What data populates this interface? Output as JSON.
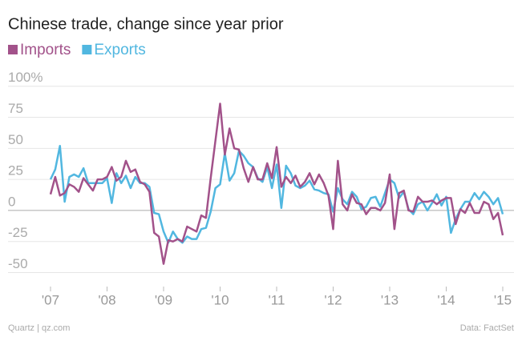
{
  "chart_data": {
    "type": "line",
    "title": "Chinese trade, change since year prior",
    "source_left": "Quartz | qz.com",
    "source_right": "Data: FactSet",
    "categories": [
      "'07",
      null,
      null,
      null,
      null,
      null,
      null,
      null,
      null,
      null,
      null,
      null,
      "'08",
      null,
      null,
      null,
      null,
      null,
      null,
      null,
      null,
      null,
      null,
      null,
      "'09",
      null,
      null,
      null,
      null,
      null,
      null,
      null,
      null,
      null,
      null,
      null,
      "'10",
      null,
      null,
      null,
      null,
      null,
      null,
      null,
      null,
      null,
      null,
      null,
      "'11",
      null,
      null,
      null,
      null,
      null,
      null,
      null,
      null,
      null,
      null,
      null,
      "'12",
      null,
      null,
      null,
      null,
      null,
      null,
      null,
      null,
      null,
      null,
      null,
      "'13",
      null,
      null,
      null,
      null,
      null,
      null,
      null,
      null,
      null,
      null,
      null,
      "'14",
      null,
      null,
      null,
      null,
      null,
      null,
      null,
      null,
      null,
      null,
      null,
      "'15"
    ],
    "series": [
      {
        "name": "Imports",
        "color": "#a2528a",
        "values": [
          13,
          27,
          12,
          14,
          21,
          19,
          15,
          26,
          21,
          16,
          25,
          25,
          27,
          35,
          24,
          27,
          40,
          31,
          33,
          23,
          21,
          15,
          -18,
          -21,
          -43,
          -24,
          -25,
          -23,
          -25,
          -13,
          -15,
          -17,
          -4,
          -6,
          26,
          56,
          86,
          45,
          66,
          50,
          49,
          34,
          23,
          35,
          25,
          25,
          38,
          26,
          51,
          19,
          27,
          22,
          28,
          19,
          23,
          30,
          21,
          29,
          22,
          12,
          -15,
          40,
          5,
          0,
          13,
          6,
          5,
          -3,
          2,
          2,
          0,
          6,
          29,
          -15,
          14,
          16,
          0,
          -1,
          11,
          7,
          7,
          8,
          5,
          8,
          10,
          10,
          -11,
          1,
          -2,
          6,
          -2,
          -2,
          7,
          5,
          -7,
          -2,
          -20
        ]
      },
      {
        "name": "Exports",
        "color": "#51b7e0",
        "values": [
          25,
          33,
          52,
          7,
          27,
          29,
          27,
          34,
          22,
          22,
          22,
          22,
          26,
          6,
          30,
          22,
          28,
          18,
          27,
          22,
          22,
          19,
          -2,
          -3,
          -17,
          -26,
          -17,
          -23,
          -26,
          -21,
          -23,
          -23,
          -15,
          -14,
          -1,
          18,
          21,
          46,
          24,
          30,
          48,
          44,
          38,
          35,
          26,
          23,
          35,
          18,
          37,
          2,
          36,
          30,
          20,
          18,
          20,
          24,
          17,
          16,
          14,
          13,
          -1,
          18,
          9,
          5,
          15,
          11,
          1,
          3,
          10,
          11,
          3,
          14,
          25,
          22,
          10,
          15,
          1,
          -3,
          5,
          7,
          0,
          6,
          13,
          4,
          11,
          -18,
          -7,
          1,
          7,
          7,
          14,
          9,
          15,
          11,
          5,
          10,
          -3
        ]
      }
    ],
    "ylim": [
      -60,
      105
    ],
    "yticks": [
      {
        "value": 100,
        "label": "100%"
      },
      75,
      50,
      25,
      0,
      -25,
      -50
    ],
    "grid": true
  }
}
